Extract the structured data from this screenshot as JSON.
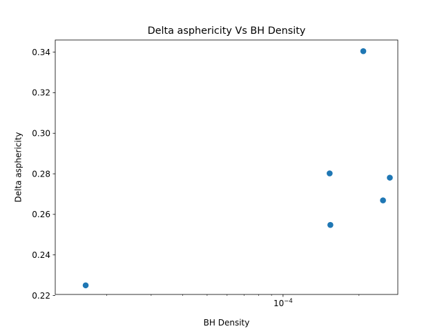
{
  "chart_data": {
    "type": "scatter",
    "title": "Delta asphericity Vs BH Density",
    "xlabel": "BH Density",
    "ylabel": "Delta asphericity",
    "x_scale": "log",
    "x_major_tick_labels": [
      {
        "value": 0.0001,
        "base": "10",
        "exponent": "−4"
      }
    ],
    "y_tick_labels": [
      "0.22",
      "0.24",
      "0.26",
      "0.28",
      "0.30",
      "0.32",
      "0.34"
    ],
    "y_ticks": [
      0.22,
      0.24,
      0.26,
      0.28,
      0.3,
      0.32,
      0.34
    ],
    "xlim": [
      1.25e-05,
      0.000285
    ],
    "ylim": [
      0.2205,
      0.346
    ],
    "grid": false,
    "marker_color": "#1f77b4",
    "points": [
      {
        "x": 1.65e-05,
        "y": 0.225
      },
      {
        "x": 0.000153,
        "y": 0.2802
      },
      {
        "x": 0.000154,
        "y": 0.2548
      },
      {
        "x": 0.000208,
        "y": 0.3405
      },
      {
        "x": 0.000249,
        "y": 0.2669
      },
      {
        "x": 0.000265,
        "y": 0.2781
      }
    ]
  }
}
